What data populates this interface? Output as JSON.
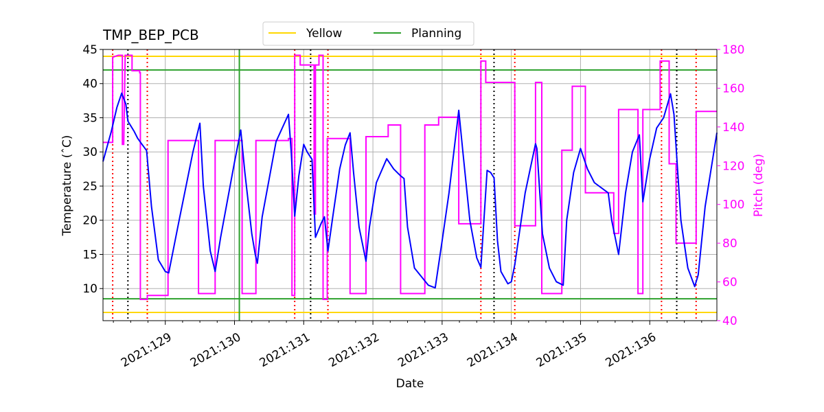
{
  "chart_data": {
    "type": "line",
    "title": "TMP_BEP_PCB",
    "xlabel": "Date",
    "ylabel": "Temperature ($^\\circ$C)",
    "ylabel_display": "Temperature (ˆC)",
    "y2label": "Pitch (deg)",
    "xlim": [
      128.1,
      136.97
    ],
    "ylim": [
      5.3,
      45.0
    ],
    "y2lim": [
      40,
      180
    ],
    "xticks": [
      129,
      130,
      131,
      132,
      133,
      134,
      135,
      136
    ],
    "xtick_labels": [
      "2021:129",
      "2021:130",
      "2021:131",
      "2021:132",
      "2021:133",
      "2021:134",
      "2021:135",
      "2021:136"
    ],
    "yticks": [
      10,
      15,
      20,
      25,
      30,
      35,
      40,
      45
    ],
    "y2ticks": [
      40,
      60,
      80,
      100,
      120,
      140,
      160,
      180
    ],
    "grid": true,
    "legend": {
      "placement": "top-center",
      "entries": [
        {
          "name": "Yellow",
          "color": "#ffd700"
        },
        {
          "name": "Planning",
          "color": "#2ca02c"
        }
      ]
    },
    "limits": {
      "yellow": [
        6.5,
        44.0
      ],
      "planning": [
        8.5,
        42.0
      ]
    },
    "colors": {
      "temperature": "#0000ff",
      "pitch": "#ff00ff",
      "yellow": "#ffd700",
      "planning": "#2ca02c",
      "red_vlines": "#ff0000",
      "black_vlines": "#000000",
      "grid": "#b0b0b0",
      "pitch_axis": "#ff00ff"
    },
    "green_vline_x": 130.07,
    "red_vlines_x": [
      128.24,
      128.74,
      130.87,
      131.35,
      133.56,
      134.05,
      136.17,
      136.67
    ],
    "black_vlines_x": [
      128.46,
      131.1,
      133.75,
      136.39
    ],
    "series": [
      {
        "name": "Temperature",
        "axis": "left",
        "x": [
          128.1,
          128.22,
          128.3,
          128.37,
          128.43,
          128.46,
          128.55,
          128.6,
          128.65,
          128.73,
          128.8,
          128.9,
          129.0,
          129.05,
          129.2,
          129.4,
          129.5,
          129.55,
          129.65,
          129.72,
          129.8,
          130.0,
          130.09,
          130.15,
          130.25,
          130.3,
          130.33,
          130.4,
          130.6,
          130.78,
          130.82,
          130.87,
          130.93,
          131.0,
          131.05,
          131.12,
          131.17,
          131.25,
          131.3,
          131.35,
          131.42,
          131.52,
          131.6,
          131.67,
          131.72,
          131.8,
          131.9,
          131.95,
          132.05,
          132.2,
          132.3,
          132.4,
          132.45,
          132.5,
          132.6,
          132.8,
          132.9,
          133.0,
          133.1,
          133.24,
          133.3,
          133.4,
          133.5,
          133.56,
          133.65,
          133.7,
          133.75,
          133.8,
          133.85,
          133.95,
          134.0,
          134.05,
          134.2,
          134.35,
          134.37,
          134.45,
          134.55,
          134.65,
          134.75,
          134.8,
          134.9,
          135.0,
          135.1,
          135.2,
          135.4,
          135.45,
          135.55,
          135.65,
          135.75,
          135.85,
          135.9,
          136.0,
          136.1,
          136.2,
          136.3,
          136.35,
          136.45,
          136.55,
          136.65,
          136.7,
          136.8,
          136.97
        ],
        "y": [
          28.6,
          33.0,
          36.5,
          38.6,
          37.0,
          34.5,
          33.0,
          32.0,
          31.3,
          30.2,
          22.0,
          14.2,
          12.5,
          12.3,
          20.0,
          30.0,
          34.2,
          25.0,
          15.5,
          12.5,
          17.5,
          28.5,
          33.2,
          27.0,
          18.0,
          15.0,
          13.7,
          20.5,
          31.5,
          35.5,
          30.0,
          20.6,
          26.5,
          31.1,
          30.0,
          28.9,
          17.5,
          19.5,
          20.5,
          15.5,
          20.5,
          27.5,
          31.0,
          32.8,
          27.0,
          19.0,
          14.0,
          19.0,
          25.5,
          29.0,
          27.5,
          26.5,
          26.1,
          19.0,
          13.0,
          10.5,
          10.1,
          17.0,
          24.0,
          36.1,
          30.0,
          20.0,
          14.5,
          13.1,
          27.3,
          27.0,
          26.2,
          17.0,
          12.5,
          10.7,
          11.0,
          13.5,
          24.0,
          31.2,
          30.5,
          18.0,
          13.0,
          11.0,
          10.5,
          20.0,
          27.0,
          30.5,
          27.5,
          25.5,
          24.0,
          20.0,
          15.0,
          24.0,
          30.0,
          32.5,
          22.7,
          29.0,
          33.5,
          35.0,
          38.5,
          35.5,
          20.0,
          13.0,
          10.3,
          12.0,
          22.0,
          32.8
        ]
      },
      {
        "name": "Pitch",
        "axis": "right",
        "x": [
          128.1,
          128.24,
          128.24,
          128.32,
          128.38,
          128.38,
          128.4,
          128.42,
          128.42,
          128.5,
          128.52,
          128.52,
          128.63,
          128.63,
          128.64,
          128.64,
          128.74,
          128.74,
          129.04,
          129.04,
          129.48,
          129.48,
          129.72,
          129.72,
          130.0,
          130.0,
          130.11,
          130.11,
          130.31,
          130.31,
          130.78,
          130.78,
          130.83,
          130.83,
          130.87,
          130.87,
          130.95,
          130.95,
          131.08,
          131.08,
          131.15,
          131.15,
          131.17,
          131.17,
          131.22,
          131.22,
          131.28,
          131.28,
          131.32,
          131.32,
          131.34,
          131.34,
          131.36,
          131.36,
          131.67,
          131.67,
          131.9,
          131.9,
          132.22,
          132.22,
          132.4,
          132.4,
          132.75,
          132.75,
          132.95,
          132.95,
          133.24,
          133.24,
          133.56,
          133.56,
          133.63,
          133.63,
          133.75,
          133.75,
          134.05,
          134.05,
          134.35,
          134.35,
          134.44,
          134.44,
          134.73,
          134.73,
          134.88,
          134.88,
          135.07,
          135.07,
          135.42,
          135.42,
          135.48,
          135.48,
          135.55,
          135.55,
          135.83,
          135.83,
          135.88,
          135.88,
          135.9,
          135.9,
          136.15,
          136.15,
          136.28,
          136.28,
          136.38,
          136.38,
          136.67,
          136.67,
          136.97
        ],
        "y": [
          132,
          132,
          176,
          177,
          177,
          131,
          131,
          177,
          177,
          177,
          177,
          169,
          169,
          168,
          168,
          51,
          51,
          53,
          53,
          133,
          133,
          54,
          54,
          133,
          133,
          133,
          133,
          54,
          54,
          133,
          133,
          134,
          134,
          53,
          53,
          177,
          177,
          172,
          172,
          172,
          172,
          95,
          95,
          172,
          172,
          177,
          177,
          51,
          51,
          51,
          51,
          134,
          134,
          134,
          134,
          54,
          54,
          135,
          135,
          141,
          141,
          54,
          54,
          141,
          141,
          145,
          145,
          90,
          90,
          174,
          174,
          163,
          163,
          163,
          163,
          89,
          89,
          163,
          163,
          54,
          54,
          128,
          128,
          161,
          161,
          106,
          106,
          106,
          106,
          85,
          85,
          149,
          149,
          54,
          54,
          54,
          54,
          149,
          149,
          174,
          174,
          121,
          121,
          80,
          80,
          148,
          148
        ]
      }
    ]
  }
}
